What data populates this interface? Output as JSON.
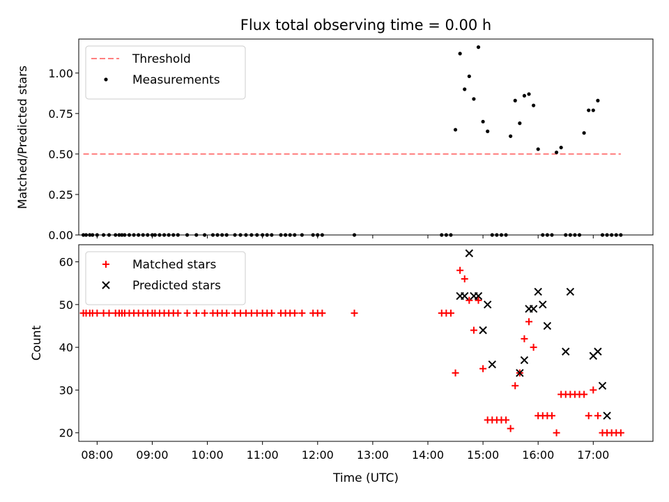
{
  "chart_data": {
    "title": "Flux total observing time = 0.00 h",
    "xlabel": "Time (UTC)",
    "x_ticks": [
      "08:00",
      "09:00",
      "10:00",
      "11:00",
      "12:00",
      "13:00",
      "14:00",
      "15:00",
      "16:00",
      "17:00"
    ],
    "xlim": [
      "07:40",
      "18:05"
    ],
    "panels": [
      {
        "type": "scatter",
        "ylabel": "Matched/Predicted stars",
        "ylim": [
          0,
          1.21
        ],
        "y_ticks": [
          "0.00",
          "0.25",
          "0.50",
          "0.75",
          "1.00"
        ],
        "legend_position": "upper-left",
        "series": [
          {
            "name": "Threshold",
            "kind": "dashed-line",
            "color": "#ff7f7f",
            "x": [
              "07:45",
              "17:30"
            ],
            "y": [
              0.5,
              0.5
            ]
          },
          {
            "name": "Measurements",
            "kind": "dot",
            "color": "#000000",
            "x": [
              "07:45",
              "07:48",
              "07:52",
              "07:55",
              "08:00",
              "08:07",
              "08:13",
              "08:20",
              "08:24",
              "08:27",
              "08:30",
              "08:35",
              "08:40",
              "08:45",
              "08:50",
              "08:55",
              "09:00",
              "09:03",
              "09:08",
              "09:13",
              "09:18",
              "09:23",
              "09:28",
              "09:38",
              "09:48",
              "09:57",
              "10:06",
              "10:11",
              "10:16",
              "10:21",
              "10:30",
              "10:36",
              "10:42",
              "10:48",
              "10:54",
              "11:00",
              "11:05",
              "11:10",
              "11:20",
              "11:25",
              "11:30",
              "11:35",
              "11:43",
              "11:55",
              "12:00",
              "12:05",
              "12:40",
              "14:15",
              "14:20",
              "14:25",
              "14:30",
              "14:35",
              "14:40",
              "14:45",
              "14:50",
              "14:55",
              "15:00",
              "15:05",
              "15:10",
              "15:15",
              "15:20",
              "15:25",
              "15:30",
              "15:35",
              "15:40",
              "15:45",
              "15:50",
              "15:55",
              "16:00",
              "16:05",
              "16:10",
              "16:15",
              "16:20",
              "16:25",
              "16:30",
              "16:35",
              "16:40",
              "16:45",
              "16:50",
              "16:55",
              "17:00",
              "17:05",
              "17:10",
              "17:15",
              "17:20",
              "17:25",
              "17:30"
            ],
            "y": [
              0,
              0,
              0,
              0,
              0,
              0,
              0,
              0,
              0,
              0,
              0,
              0,
              0,
              0,
              0,
              0,
              0,
              0,
              0,
              0,
              0,
              0,
              0,
              0,
              0,
              0,
              0,
              0,
              0,
              0,
              0,
              0,
              0,
              0,
              0,
              0,
              0,
              0,
              0,
              0,
              0,
              0,
              0,
              0,
              0,
              0,
              0,
              0,
              0,
              0,
              0.65,
              1.12,
              0.9,
              0.98,
              0.84,
              1.16,
              0.7,
              0.64,
              0,
              0,
              0,
              0,
              0.61,
              0.83,
              0.69,
              0.86,
              0.87,
              0.8,
              0.53,
              0,
              0,
              0,
              0.51,
              0.54,
              0,
              0,
              0,
              0,
              0.63,
              0.77,
              0.77,
              0.83,
              0,
              0,
              0,
              0,
              0
            ]
          }
        ]
      },
      {
        "type": "scatter",
        "ylabel": "Count",
        "ylim": [
          18,
          64
        ],
        "y_ticks": [
          "20",
          "30",
          "40",
          "50",
          "60"
        ],
        "legend_position": "upper-left",
        "series": [
          {
            "name": "Matched stars",
            "kind": "plus",
            "color": "#ff0000",
            "x": [
              "07:45",
              "07:48",
              "07:52",
              "07:55",
              "08:00",
              "08:07",
              "08:13",
              "08:20",
              "08:24",
              "08:27",
              "08:30",
              "08:35",
              "08:40",
              "08:45",
              "08:50",
              "08:55",
              "09:00",
              "09:03",
              "09:08",
              "09:13",
              "09:18",
              "09:23",
              "09:28",
              "09:38",
              "09:48",
              "09:57",
              "10:06",
              "10:11",
              "10:16",
              "10:21",
              "10:30",
              "10:36",
              "10:42",
              "10:48",
              "10:54",
              "11:00",
              "11:05",
              "11:10",
              "11:20",
              "11:25",
              "11:30",
              "11:35",
              "11:43",
              "11:55",
              "12:00",
              "12:05",
              "12:40",
              "14:15",
              "14:20",
              "14:25",
              "14:30",
              "14:35",
              "14:40",
              "14:45",
              "14:50",
              "14:55",
              "15:00",
              "15:05",
              "15:10",
              "15:15",
              "15:20",
              "15:25",
              "15:30",
              "15:35",
              "15:40",
              "15:45",
              "15:50",
              "15:55",
              "16:00",
              "16:05",
              "16:10",
              "16:15",
              "16:20",
              "16:25",
              "16:30",
              "16:35",
              "16:40",
              "16:45",
              "16:50",
              "16:55",
              "17:00",
              "17:05",
              "17:10",
              "17:15",
              "17:20",
              "17:25",
              "17:30"
            ],
            "y": [
              48,
              48,
              48,
              48,
              48,
              48,
              48,
              48,
              48,
              48,
              48,
              48,
              48,
              48,
              48,
              48,
              48,
              48,
              48,
              48,
              48,
              48,
              48,
              48,
              48,
              48,
              48,
              48,
              48,
              48,
              48,
              48,
              48,
              48,
              48,
              48,
              48,
              48,
              48,
              48,
              48,
              48,
              48,
              48,
              48,
              48,
              48,
              48,
              48,
              48,
              34,
              58,
              56,
              51,
              44,
              51,
              35,
              23,
              23,
              23,
              23,
              23,
              21,
              31,
              34,
              42,
              46,
              40,
              24,
              24,
              24,
              24,
              20,
              29,
              29,
              29,
              29,
              29,
              29,
              24,
              30,
              24,
              20,
              20,
              20,
              20,
              20
            ]
          },
          {
            "name": "Predicted stars",
            "kind": "x",
            "color": "#000000",
            "x": [
              "14:35",
              "14:40",
              "14:45",
              "14:50",
              "14:55",
              "15:00",
              "15:05",
              "15:10",
              "15:40",
              "15:45",
              "15:50",
              "15:55",
              "16:00",
              "16:05",
              "16:10",
              "16:30",
              "16:35",
              "17:00",
              "17:05",
              "17:10",
              "17:15"
            ],
            "y": [
              52,
              52,
              62,
              52,
              52,
              44,
              50,
              36,
              34,
              37,
              49,
              49,
              53,
              50,
              45,
              39,
              53,
              38,
              39,
              31,
              24
            ]
          }
        ]
      }
    ]
  }
}
